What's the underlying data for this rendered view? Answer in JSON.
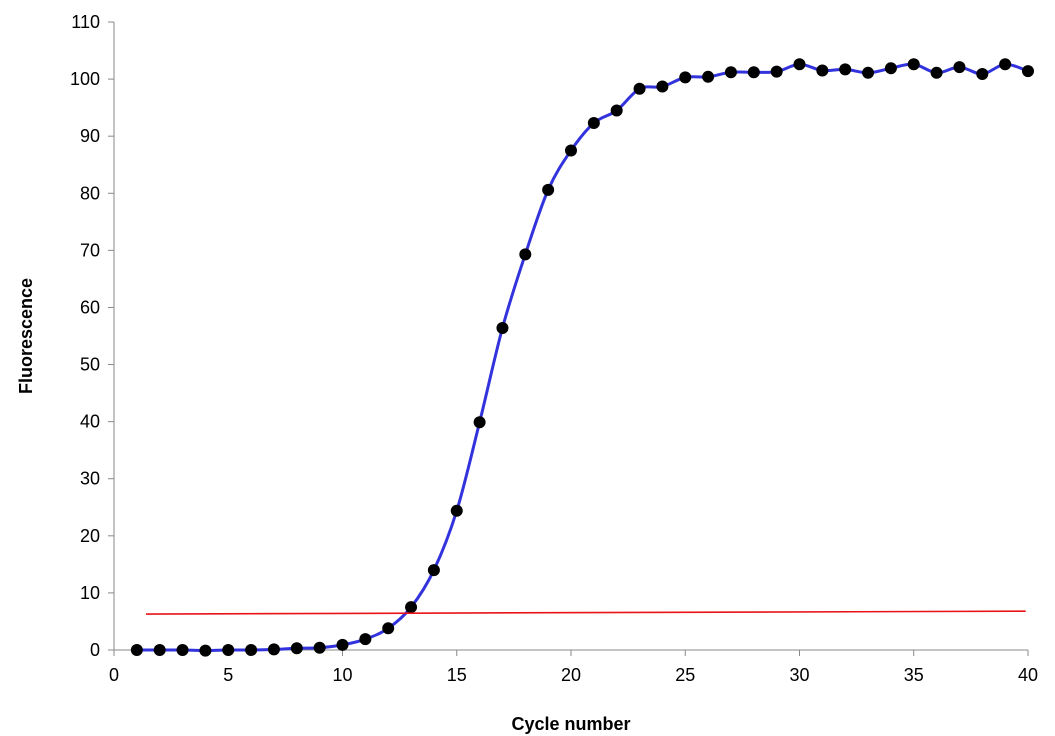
{
  "chart_data": {
    "type": "line",
    "title": "",
    "xlabel": "Cycle number",
    "ylabel": "Fluorescence",
    "xlim": [
      0,
      40
    ],
    "ylim": [
      0,
      110
    ],
    "xticks": [
      0,
      5,
      10,
      15,
      20,
      25,
      30,
      35,
      40
    ],
    "yticks": [
      0,
      10,
      20,
      30,
      40,
      50,
      60,
      70,
      80,
      90,
      100,
      110
    ],
    "grid": false,
    "legend": "none",
    "series": [
      {
        "color": "#3333dd",
        "marker_color": "#000000",
        "smooth": true,
        "x": [
          1,
          2,
          3,
          4,
          5,
          6,
          7,
          8,
          9,
          10,
          11,
          12,
          13,
          14,
          15,
          16,
          17,
          18,
          19,
          20,
          21,
          22,
          23,
          24,
          25,
          26,
          27,
          28,
          29,
          30,
          31,
          32,
          33,
          34,
          35,
          36,
          37,
          38,
          39,
          40
        ],
        "y": [
          0,
          0,
          0,
          -0.1,
          0,
          0,
          0.1,
          0.3,
          0.4,
          0.9,
          1.9,
          3.8,
          7.5,
          14,
          24.4,
          39.9,
          56.4,
          69.3,
          80.6,
          87.5,
          92.3,
          94.5,
          98.3,
          98.7,
          100.3,
          100.4,
          101.2,
          101.2,
          101.3,
          102.6,
          101.5,
          101.7,
          101.1,
          101.9,
          102.6,
          101.1,
          102.1,
          100.9,
          102.6,
          101.4
        ]
      },
      {
        "color": "#e8141a",
        "marker_color": "",
        "smooth": false,
        "x": [
          1.4,
          39.9
        ],
        "y": [
          6.3,
          6.8
        ]
      }
    ]
  }
}
